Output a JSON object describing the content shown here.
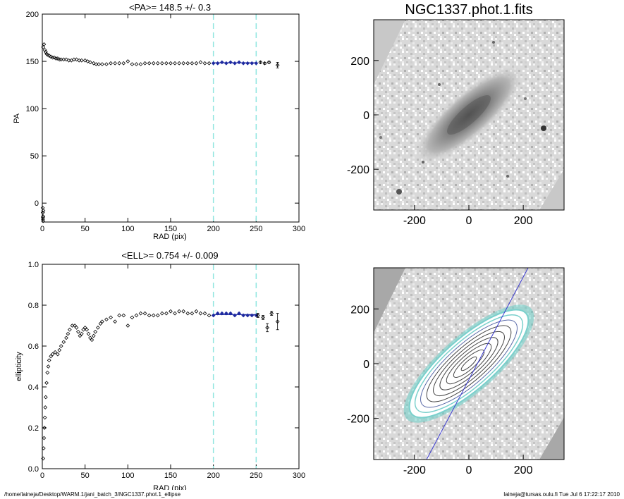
{
  "colors": {
    "points": "#000000",
    "fit_points": "#1e2aa0",
    "fit_line": "#1e2aa0",
    "limit_lines": "#8fe6e0",
    "contours": "#7ad0cc",
    "image_bg": "#c8c8c8"
  },
  "footer": {
    "path": "/home/laineja/Desktop/WARM.1/jani_batch_3/NGC1337.phot.1_ellipse",
    "stamp": "laineja@tursas.oulu.fi  Tue Jul  6 17:22:17 2010"
  },
  "chart_data": [
    {
      "type": "scatter",
      "title": "<PA>= 148.5 +/-   0.3",
      "xlabel": "RAD (pix)",
      "ylabel": "PA",
      "xlim": [
        0,
        300
      ],
      "ylim": [
        -20,
        200
      ],
      "xticks": [
        "0",
        "50",
        "100",
        "150",
        "200",
        "250",
        "300"
      ],
      "yticks": [
        "0",
        "50",
        "100",
        "150",
        "200"
      ],
      "vlines": [
        200,
        250
      ],
      "mean": 148.5,
      "fit_range": [
        200,
        250
      ],
      "series": [
        {
          "role": "profile",
          "x": [
            1,
            2,
            3,
            4,
            5,
            6,
            8,
            10,
            12,
            14,
            16,
            18,
            20,
            22,
            25,
            28,
            31,
            34,
            37,
            40,
            43,
            46,
            50,
            53,
            56,
            60,
            63,
            66,
            70,
            75,
            80,
            85,
            90,
            95,
            100,
            105,
            110,
            115,
            120,
            125,
            130,
            135,
            140,
            145,
            150,
            155,
            160,
            165,
            170,
            175,
            180,
            185,
            190,
            195
          ],
          "y": [
            165,
            168,
            162,
            160,
            158,
            157,
            156,
            155,
            154,
            154,
            153,
            153,
            152,
            152,
            152,
            152,
            151,
            151,
            152,
            152,
            151,
            151,
            151,
            150,
            149,
            148,
            147,
            147,
            147,
            147,
            148,
            148,
            148,
            148,
            150,
            147,
            147,
            147,
            148,
            148,
            148,
            148,
            148,
            148,
            148,
            148,
            148,
            148,
            148,
            148,
            148,
            149,
            148,
            148
          ]
        },
        {
          "role": "fit",
          "x": [
            200,
            205,
            210,
            215,
            220,
            225,
            230,
            235,
            240,
            245,
            250
          ],
          "y": [
            148,
            148,
            149,
            148,
            149,
            148,
            149,
            148,
            148,
            148,
            148
          ]
        },
        {
          "role": "outer",
          "x": [
            255,
            260,
            265,
            275
          ],
          "y": [
            149,
            148,
            149,
            146
          ],
          "err": [
            1,
            1,
            1,
            3
          ]
        },
        {
          "role": "center",
          "x": [
            0.5,
            0.6,
            0.7,
            0.8,
            0.9,
            1.0,
            1.2
          ],
          "y": [
            -5,
            -10,
            -15,
            -17,
            -19,
            -14,
            -8
          ]
        }
      ]
    },
    {
      "type": "scatter",
      "title": "<ELL>= 0.754 +/-  0.009",
      "xlabel": "RAD (pix)",
      "ylabel": "ellipticity",
      "xlim": [
        0,
        300
      ],
      "ylim": [
        0,
        1
      ],
      "xticks": [
        "0",
        "50",
        "100",
        "150",
        "200",
        "250",
        "300"
      ],
      "yticks": [
        "0.0",
        "0.2",
        "0.4",
        "0.6",
        "0.8",
        "1.0"
      ],
      "vlines": [
        200,
        250
      ],
      "mean": 0.754,
      "fit_range": [
        200,
        250
      ],
      "series": [
        {
          "role": "profile",
          "x": [
            1,
            1.5,
            2,
            2.5,
            3,
            3.5,
            4,
            5,
            6,
            7,
            8,
            10,
            12,
            15,
            18,
            20,
            22,
            25,
            28,
            30,
            32,
            35,
            38,
            40,
            42,
            44,
            46,
            48,
            50,
            52,
            54,
            56,
            58,
            60,
            62,
            65,
            68,
            70,
            75,
            80,
            85,
            90,
            95,
            100,
            105,
            110,
            115,
            120,
            125,
            130,
            135,
            140,
            145,
            150,
            155,
            160,
            165,
            170,
            175,
            180,
            185,
            190,
            195
          ],
          "y": [
            0.05,
            0.1,
            0.15,
            0.2,
            0.25,
            0.3,
            0.35,
            0.42,
            0.47,
            0.5,
            0.53,
            0.55,
            0.56,
            0.57,
            0.56,
            0.58,
            0.6,
            0.62,
            0.64,
            0.66,
            0.68,
            0.7,
            0.7,
            0.69,
            0.67,
            0.65,
            0.66,
            0.68,
            0.69,
            0.68,
            0.66,
            0.64,
            0.63,
            0.65,
            0.67,
            0.69,
            0.71,
            0.72,
            0.73,
            0.74,
            0.72,
            0.75,
            0.75,
            0.7,
            0.74,
            0.75,
            0.76,
            0.76,
            0.75,
            0.75,
            0.75,
            0.76,
            0.76,
            0.77,
            0.76,
            0.77,
            0.77,
            0.76,
            0.76,
            0.77,
            0.76,
            0.76,
            0.75
          ]
        },
        {
          "role": "fit",
          "x": [
            200,
            205,
            210,
            215,
            220,
            225,
            230,
            235,
            240,
            245,
            250
          ],
          "y": [
            0.75,
            0.76,
            0.76,
            0.76,
            0.76,
            0.75,
            0.76,
            0.75,
            0.75,
            0.75,
            0.75
          ]
        },
        {
          "role": "outer",
          "x": [
            252,
            258,
            263,
            268,
            275
          ],
          "y": [
            0.75,
            0.74,
            0.69,
            0.76,
            0.72
          ],
          "err": [
            0.01,
            0.01,
            0.02,
            0.01,
            0.04
          ]
        }
      ]
    }
  ],
  "images": [
    {
      "title": "NGC1337.phot.1.fits",
      "xlim": [
        -350,
        350
      ],
      "ylim": [
        -350,
        350
      ],
      "xticks": [
        "-200",
        "0",
        "200"
      ],
      "yticks": [
        "-200",
        "0",
        "200"
      ],
      "galaxy": {
        "pa_deg": 148.5,
        "ellipticity": 0.754
      }
    },
    {
      "title": "",
      "xlim": [
        -350,
        350
      ],
      "ylim": [
        -350,
        350
      ],
      "xticks": [
        "-200",
        "0",
        "200"
      ],
      "yticks": [
        "-200",
        "0",
        "200"
      ],
      "galaxy": {
        "pa_deg": 148.5,
        "ellipticity": 0.754
      }
    }
  ]
}
